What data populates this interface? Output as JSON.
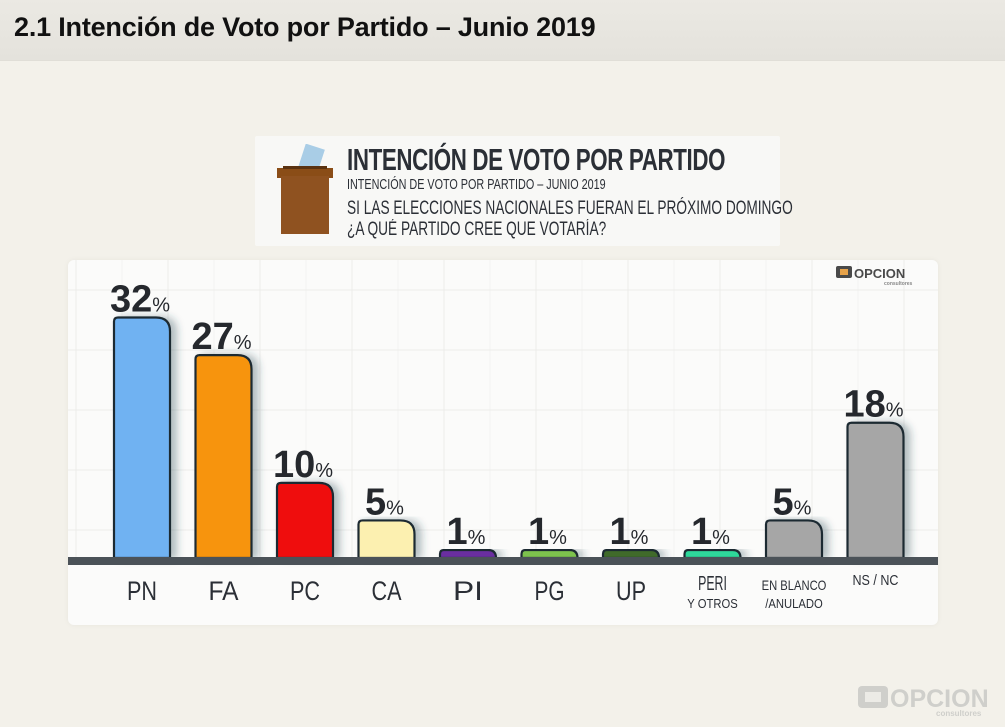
{
  "page": {
    "title": "2.1 Intención de Voto por Partido – Junio 2019"
  },
  "header": {
    "main_title": "INTENCIÓN DE VOTO POR PARTIDO",
    "subtitle": "INTENCIÓN DE VOTO POR PARTIDO – JUNIO 2019",
    "question_line1": "SI LAS ELECCIONES NACIONALES FUERAN EL PRÓXIMO DOMINGO",
    "question_line2": "¿A QUÉ PARTIDO CREE QUE VOTARÍA?",
    "icon": "ballot-box-icon"
  },
  "brand": {
    "name": "OPCION",
    "tagline": "consultores",
    "accent": "#e8a34a"
  },
  "chart_data": {
    "type": "bar",
    "title": "INTENCIÓN DE VOTO POR PARTIDO",
    "xlabel": "",
    "ylabel": "",
    "ylim": [
      0,
      35
    ],
    "grid": true,
    "legend": "none",
    "value_suffix": "%",
    "categories": [
      "PN",
      "FA",
      "PC",
      "CA",
      "PI",
      "PG",
      "UP",
      "PERI\nY OTROS",
      "EN BLANCO\n/ANULADO",
      "NS / NC"
    ],
    "values": [
      32,
      27,
      10,
      5,
      1,
      1,
      1,
      1,
      5,
      18
    ],
    "colors": [
      "#6fb2f2",
      "#f7940c",
      "#ef0d0d",
      "#fcf0b0",
      "#6a2fa0",
      "#7dc24e",
      "#3f6b2a",
      "#2fd89a",
      "#a6a6a6",
      "#a6a6a6"
    ]
  }
}
